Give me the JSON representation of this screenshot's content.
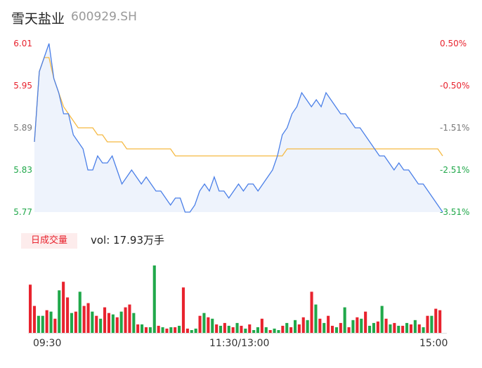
{
  "header": {
    "name": "雪天盐业",
    "code": "600929.SH"
  },
  "price_axis": {
    "left_labels": [
      "6.01",
      "5.95",
      "5.89",
      "5.83",
      "5.77"
    ],
    "right_labels": [
      "0.50%",
      "-0.50%",
      "-1.51%",
      "-2.51%",
      "-3.51%"
    ]
  },
  "volume": {
    "badge": "日成交量",
    "text": "vol: 17.93万手"
  },
  "time_axis": [
    "09:30",
    "11:30/13:00",
    "15:00"
  ],
  "colors": {
    "price_line": "#4a7fe8",
    "avg_line": "#f5b942",
    "up": "#e8232e",
    "down": "#20a84a",
    "fill": "#eef3fc"
  },
  "chart_data": [
    {
      "type": "line",
      "title": "",
      "xlabel": "",
      "ylabel": "",
      "ylim": [
        5.77,
        6.01
      ],
      "x_ticks": [
        "09:30",
        "11:30/13:00",
        "15:00"
      ],
      "series": [
        {
          "name": "",
          "values": [
            5.87,
            5.97,
            5.99,
            6.01,
            5.96,
            5.94,
            5.91,
            5.91,
            5.88,
            5.87,
            5.86,
            5.83,
            5.83,
            5.85,
            5.84,
            5.84,
            5.85,
            5.83,
            5.81,
            5.82,
            5.83,
            5.82,
            5.81,
            5.82,
            5.81,
            5.8,
            5.8,
            5.79,
            5.78,
            5.79,
            5.79,
            5.77,
            5.77,
            5.78,
            5.8,
            5.81,
            5.8,
            5.82,
            5.8,
            5.8,
            5.79,
            5.8,
            5.81,
            5.8,
            5.81,
            5.81,
            5.8,
            5.81,
            5.82,
            5.83,
            5.85,
            5.88,
            5.89,
            5.91,
            5.92,
            5.94,
            5.93,
            5.92,
            5.93,
            5.92,
            5.94,
            5.93,
            5.92,
            5.91,
            5.91,
            5.9,
            5.89,
            5.89,
            5.88,
            5.87,
            5.86,
            5.85,
            5.85,
            5.84,
            5.83,
            5.84,
            5.83,
            5.83,
            5.82,
            5.81,
            5.81,
            5.8,
            5.79,
            5.78,
            5.77
          ]
        },
        {
          "name": "",
          "values": [
            5.87,
            5.97,
            5.99,
            5.99,
            5.96,
            5.94,
            5.92,
            5.91,
            5.9,
            5.89,
            5.89,
            5.89,
            5.89,
            5.88,
            5.88,
            5.87,
            5.87,
            5.87,
            5.87,
            5.86,
            5.86,
            5.86,
            5.86,
            5.86,
            5.86,
            5.86,
            5.86,
            5.86,
            5.86,
            5.85,
            5.85,
            5.85,
            5.85,
            5.85,
            5.85,
            5.85,
            5.85,
            5.85,
            5.85,
            5.85,
            5.85,
            5.85,
            5.85,
            5.85,
            5.85,
            5.85,
            5.85,
            5.85,
            5.85,
            5.85,
            5.85,
            5.85,
            5.86,
            5.86,
            5.86,
            5.86,
            5.86,
            5.86,
            5.86,
            5.86,
            5.86,
            5.86,
            5.86,
            5.86,
            5.86,
            5.86,
            5.86,
            5.86,
            5.86,
            5.86,
            5.86,
            5.86,
            5.86,
            5.86,
            5.86,
            5.86,
            5.86,
            5.86,
            5.86,
            5.86,
            5.86,
            5.86,
            5.86,
            5.86,
            5.85
          ]
        }
      ]
    },
    {
      "type": "bar",
      "title": "",
      "xlabel": "",
      "ylabel": "",
      "values": [
        68,
        38,
        24,
        24,
        32,
        30,
        20,
        60,
        72,
        50,
        28,
        30,
        58,
        38,
        42,
        30,
        24,
        20,
        36,
        28,
        26,
        22,
        30,
        36,
        40,
        28,
        12,
        12,
        8,
        8,
        95,
        10,
        8,
        6,
        8,
        8,
        10,
        64,
        6,
        4,
        6,
        24,
        28,
        22,
        20,
        12,
        10,
        14,
        10,
        8,
        14,
        10,
        6,
        12,
        4,
        8,
        20,
        8,
        4,
        6,
        4,
        10,
        14,
        8,
        18,
        12,
        22,
        18,
        58,
        40,
        20,
        14,
        24,
        10,
        8,
        14,
        36,
        8,
        18,
        22,
        20,
        30,
        10,
        14,
        16,
        38,
        20,
        12,
        14,
        10,
        10,
        14,
        12,
        18,
        12,
        8,
        24,
        24,
        34,
        32
      ],
      "up": [
        true,
        true,
        false,
        false,
        true,
        false,
        true,
        false,
        true,
        true,
        false,
        true,
        false,
        true,
        true,
        false,
        true,
        false,
        true,
        true,
        false,
        true,
        false,
        true,
        true,
        false,
        true,
        false,
        true,
        false,
        false,
        true,
        false,
        true,
        false,
        true,
        false,
        true,
        true,
        false,
        false,
        true,
        false,
        true,
        false,
        true,
        false,
        true,
        false,
        true,
        false,
        true,
        false,
        true,
        false,
        false,
        true,
        false,
        true,
        false,
        false,
        true,
        false,
        true,
        false,
        true,
        true,
        false,
        true,
        false,
        true,
        false,
        true,
        true,
        false,
        true,
        false,
        true,
        false,
        true,
        false,
        true,
        false,
        false,
        true,
        false,
        true,
        false,
        true,
        false,
        true,
        false,
        true,
        false,
        true,
        false,
        true,
        false,
        true,
        true
      ]
    }
  ]
}
